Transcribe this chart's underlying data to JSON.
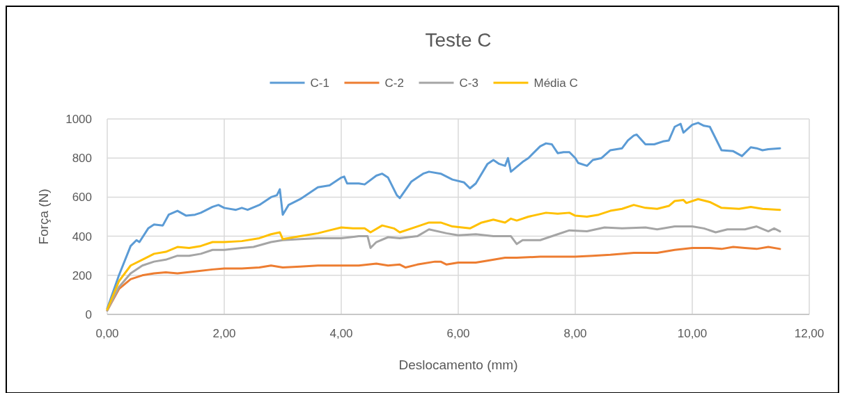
{
  "chart_data": {
    "type": "line",
    "title": "Teste C",
    "xlabel": "Deslocamento (mm)",
    "ylabel": "Força (N)",
    "xlim": [
      0,
      12
    ],
    "xticks": [
      {
        "value": 0,
        "label": "0,00"
      },
      {
        "value": 2,
        "label": "2,00"
      },
      {
        "value": 4,
        "label": "4,00"
      },
      {
        "value": 6,
        "label": "6,00"
      },
      {
        "value": 8,
        "label": "8,00"
      },
      {
        "value": 10,
        "label": "10,00"
      },
      {
        "value": 12,
        "label": "12,00"
      }
    ],
    "ylim": [
      0,
      1000
    ],
    "yticks": [
      0,
      200,
      400,
      600,
      800,
      1000
    ],
    "grid": true,
    "legend": "top",
    "marker": "none",
    "line_style": "solid",
    "series": [
      {
        "name": "C-1",
        "color": "#5b9bd5",
        "x": [
          0,
          0.2,
          0.4,
          0.5,
          0.55,
          0.7,
          0.8,
          0.95,
          1.05,
          1.2,
          1.35,
          1.5,
          1.6,
          1.8,
          1.9,
          2.0,
          2.2,
          2.3,
          2.4,
          2.6,
          2.8,
          2.9,
          2.95,
          3.0,
          3.1,
          3.3,
          3.6,
          3.8,
          4.0,
          4.05,
          4.1,
          4.3,
          4.4,
          4.6,
          4.7,
          4.8,
          4.95,
          5.0,
          5.2,
          5.4,
          5.5,
          5.7,
          5.9,
          6.1,
          6.2,
          6.3,
          6.5,
          6.6,
          6.7,
          6.8,
          6.85,
          6.9,
          7.1,
          7.2,
          7.4,
          7.5,
          7.6,
          7.7,
          7.8,
          7.9,
          8.0,
          8.05,
          8.2,
          8.3,
          8.45,
          8.6,
          8.8,
          8.9,
          9.0,
          9.05,
          9.2,
          9.35,
          9.5,
          9.6,
          9.7,
          9.8,
          9.85,
          10.0,
          10.1,
          10.2,
          10.3,
          10.5,
          10.7,
          10.85,
          11.0,
          11.1,
          11.2,
          11.3,
          11.5
        ],
        "values": [
          30,
          200,
          350,
          380,
          370,
          440,
          460,
          455,
          510,
          530,
          505,
          510,
          520,
          550,
          560,
          545,
          535,
          545,
          535,
          560,
          600,
          610,
          640,
          510,
          560,
          590,
          650,
          660,
          700,
          705,
          670,
          670,
          665,
          710,
          720,
          700,
          610,
          595,
          680,
          720,
          730,
          720,
          690,
          675,
          645,
          670,
          770,
          790,
          770,
          760,
          800,
          730,
          780,
          800,
          860,
          875,
          870,
          825,
          830,
          830,
          800,
          775,
          760,
          790,
          800,
          840,
          850,
          890,
          915,
          920,
          870,
          870,
          885,
          890,
          960,
          975,
          930,
          970,
          980,
          965,
          960,
          840,
          835,
          810,
          855,
          850,
          840,
          845,
          850
        ]
      },
      {
        "name": "C-2",
        "color": "#ed7d31",
        "x": [
          0,
          0.2,
          0.4,
          0.6,
          0.8,
          1.0,
          1.2,
          1.5,
          1.8,
          2.0,
          2.3,
          2.6,
          2.8,
          3.0,
          3.3,
          3.6,
          4.0,
          4.3,
          4.6,
          4.8,
          5.0,
          5.1,
          5.3,
          5.6,
          5.7,
          5.8,
          6.0,
          6.3,
          6.5,
          6.8,
          7.0,
          7.4,
          7.8,
          8.0,
          8.3,
          8.6,
          9.0,
          9.4,
          9.7,
          10.0,
          10.3,
          10.5,
          10.7,
          10.9,
          11.1,
          11.3,
          11.5
        ],
        "values": [
          20,
          130,
          180,
          200,
          210,
          215,
          210,
          220,
          230,
          235,
          235,
          240,
          250,
          240,
          245,
          250,
          250,
          250,
          260,
          250,
          255,
          240,
          255,
          270,
          270,
          255,
          265,
          265,
          275,
          290,
          290,
          295,
          295,
          295,
          300,
          305,
          315,
          315,
          330,
          340,
          340,
          335,
          345,
          340,
          335,
          345,
          335
        ]
      },
      {
        "name": "C-3",
        "color": "#a5a5a5",
        "x": [
          0,
          0.2,
          0.4,
          0.6,
          0.8,
          1.0,
          1.2,
          1.4,
          1.6,
          1.8,
          2.0,
          2.3,
          2.5,
          2.8,
          3.0,
          3.3,
          3.6,
          4.0,
          4.3,
          4.45,
          4.5,
          4.6,
          4.8,
          5.0,
          5.3,
          5.5,
          5.8,
          6.0,
          6.3,
          6.6,
          6.9,
          7.0,
          7.1,
          7.4,
          7.7,
          7.9,
          8.2,
          8.5,
          8.8,
          9.2,
          9.4,
          9.7,
          10.0,
          10.2,
          10.4,
          10.6,
          10.9,
          11.1,
          11.3,
          11.4,
          11.5
        ],
        "values": [
          20,
          140,
          210,
          250,
          270,
          280,
          300,
          300,
          310,
          330,
          330,
          340,
          345,
          370,
          380,
          385,
          390,
          390,
          400,
          400,
          340,
          370,
          395,
          390,
          400,
          435,
          415,
          405,
          410,
          400,
          400,
          360,
          380,
          380,
          410,
          430,
          425,
          445,
          440,
          445,
          435,
          450,
          450,
          440,
          420,
          435,
          435,
          450,
          425,
          440,
          425
        ]
      },
      {
        "name": "Média C",
        "color": "#ffc000",
        "x": [
          0,
          0.2,
          0.4,
          0.6,
          0.8,
          1.0,
          1.2,
          1.4,
          1.6,
          1.8,
          2.0,
          2.3,
          2.6,
          2.8,
          2.95,
          3.0,
          3.3,
          3.6,
          3.8,
          4.0,
          4.2,
          4.4,
          4.5,
          4.7,
          4.9,
          5.0,
          5.3,
          5.5,
          5.7,
          5.9,
          6.2,
          6.4,
          6.6,
          6.8,
          6.9,
          7.0,
          7.2,
          7.5,
          7.7,
          7.9,
          8.0,
          8.2,
          8.4,
          8.6,
          8.8,
          9.0,
          9.2,
          9.4,
          9.6,
          9.7,
          9.85,
          9.9,
          10.1,
          10.3,
          10.5,
          10.8,
          11.0,
          11.2,
          11.5
        ],
        "values": [
          25,
          170,
          250,
          280,
          310,
          320,
          345,
          340,
          350,
          370,
          370,
          375,
          390,
          410,
          420,
          385,
          400,
          415,
          430,
          445,
          440,
          440,
          420,
          455,
          440,
          420,
          450,
          470,
          470,
          450,
          440,
          470,
          485,
          470,
          490,
          480,
          500,
          520,
          515,
          520,
          505,
          500,
          510,
          530,
          540,
          560,
          545,
          540,
          555,
          580,
          585,
          570,
          590,
          575,
          545,
          540,
          550,
          540,
          535
        ]
      }
    ]
  }
}
